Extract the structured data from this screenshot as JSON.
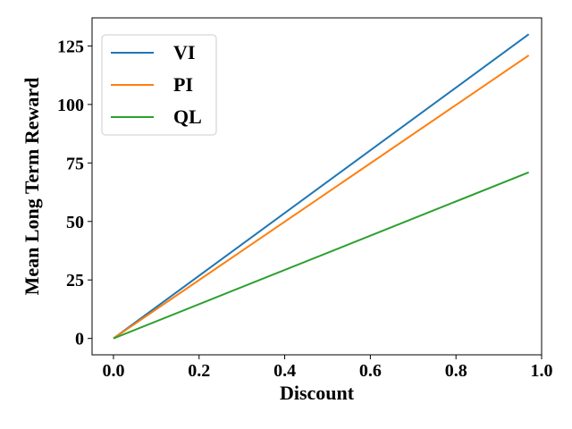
{
  "chart_data": {
    "type": "line",
    "title": "",
    "xlabel": "Discount",
    "ylabel": "Mean Long Term Reward",
    "xlim": [
      -0.05,
      1.0
    ],
    "ylim": [
      -7,
      137
    ],
    "xticks": [
      0.0,
      0.2,
      0.4,
      0.6,
      0.8,
      1.0
    ],
    "xtick_labels": [
      "0.0",
      "0.2",
      "0.4",
      "0.6",
      "0.8",
      "1.0"
    ],
    "yticks": [
      0,
      25,
      50,
      75,
      100,
      125
    ],
    "ytick_labels": [
      "0",
      "25",
      "50",
      "75",
      "100",
      "125"
    ],
    "grid": false,
    "legend_position": "top-left",
    "series": [
      {
        "name": "VI",
        "color": "#1f77b4",
        "x": [
          0.0,
          0.97
        ],
        "values": [
          0.0,
          130.0
        ]
      },
      {
        "name": "PI",
        "color": "#ff7f0e",
        "x": [
          0.0,
          0.97
        ],
        "values": [
          0.0,
          121.0
        ]
      },
      {
        "name": "QL",
        "color": "#2ca02c",
        "x": [
          0.0,
          0.97
        ],
        "values": [
          0.0,
          71.0
        ]
      }
    ]
  }
}
